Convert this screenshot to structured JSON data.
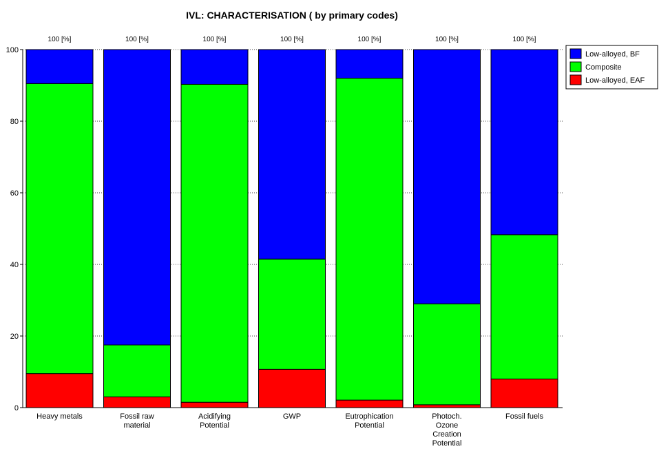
{
  "chart_data": {
    "type": "bar",
    "stacked": true,
    "title": "IVL: CHARACTERISATION ( by primary codes)",
    "categories": [
      [
        "Heavy metals"
      ],
      [
        "Fossil raw",
        "material"
      ],
      [
        "Acidifying",
        "Potential"
      ],
      [
        "GWP"
      ],
      [
        "Eutrophication",
        "Potential"
      ],
      [
        "Photoch.",
        "Ozone",
        "Creation",
        "Potential"
      ],
      [
        "Fossil fuels"
      ]
    ],
    "top_labels": [
      "100 [%]",
      "100 [%]",
      "100 [%]",
      "100 [%]",
      "100 [%]",
      "100 [%]",
      "100 [%]"
    ],
    "series": [
      {
        "name": "Low-alloyed, EAF",
        "color": "#ff0000",
        "values": [
          9.5,
          3.0,
          1.5,
          10.7,
          2.1,
          0.8,
          8.0
        ]
      },
      {
        "name": "Composite",
        "color": "#00ff00",
        "values": [
          81.0,
          14.5,
          88.8,
          30.8,
          89.9,
          28.2,
          40.3
        ]
      },
      {
        "name": "Low-alloyed, BF",
        "color": "#0000ff",
        "values": [
          9.5,
          82.5,
          9.7,
          58.5,
          8.0,
          71.0,
          51.7
        ]
      }
    ],
    "legend_order": [
      2,
      1,
      0
    ],
    "legend_position": "top-right",
    "ylim": [
      0,
      100
    ],
    "yticks": [
      0,
      20,
      40,
      60,
      80,
      100
    ],
    "grid": "horizontal-dotted"
  }
}
